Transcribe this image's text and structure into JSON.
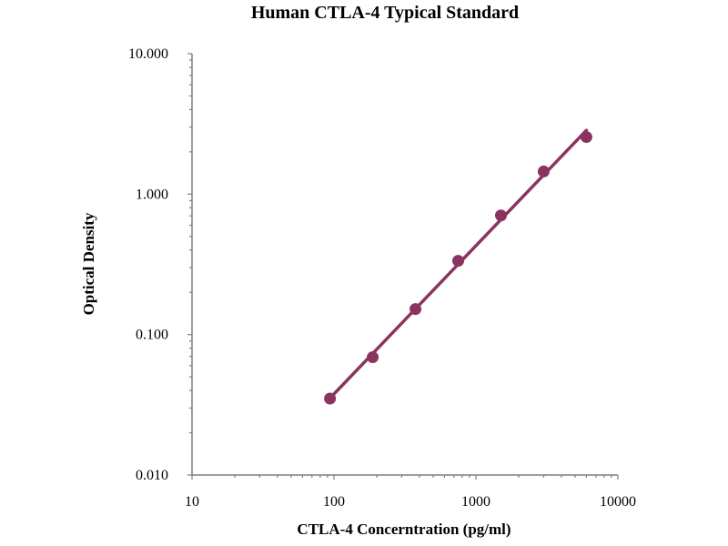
{
  "chart_data": {
    "type": "scatter",
    "title": "Human CTLA-4 Typical Standard",
    "xlabel": "CTLA-4 Concerntration (pg/ml)",
    "ylabel": "Optical Density",
    "x_scale": "log",
    "y_scale": "log",
    "xlim": [
      10,
      10000
    ],
    "ylim": [
      0.01,
      10
    ],
    "x_ticks": [
      "10",
      "100",
      "1000",
      "10000"
    ],
    "y_ticks": [
      "0.010",
      "0.100",
      "1.000",
      "10.000"
    ],
    "grid": false,
    "legend": "none",
    "series": [
      {
        "x": [
          93.75,
          187.5,
          375,
          750,
          1500,
          3000,
          6000
        ],
        "y": [
          0.035,
          0.069,
          0.152,
          0.335,
          0.705,
          1.45,
          2.55
        ],
        "marker": "circle",
        "trendline": "power"
      }
    ],
    "colors": {
      "series": "#8a3560",
      "axis": "#7f7f7f"
    }
  }
}
